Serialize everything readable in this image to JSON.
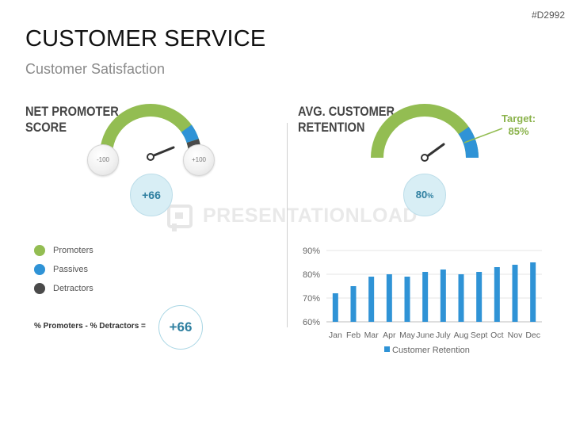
{
  "page": {
    "id_tag": "#D2992",
    "title": "CUSTOMER SERVICE",
    "subtitle": "Customer Satisfaction",
    "watermark": "PRESENTATIONLOAD"
  },
  "nps": {
    "title": "NET PROMOTER\nSCORE",
    "min_label": "-100",
    "max_label": "+100",
    "score": "+66",
    "legend": [
      {
        "label": "Promoters",
        "color": "#93bd52"
      },
      {
        "label": "Passives",
        "color": "#2f93d6"
      },
      {
        "label": "Detractors",
        "color": "#4a4a4a"
      }
    ],
    "formula_label": "% Promoters - % Detractors =",
    "formula_value": "+66"
  },
  "retention": {
    "title": "AVG. CUSTOMER\nRETENTION",
    "score_number": "80",
    "score_unit": "%",
    "target_label": "Target:",
    "target_value": "85%"
  },
  "colors": {
    "green": "#93bd52",
    "blue": "#2f93d6",
    "dark": "#4a4a4a",
    "bar": "#2f93d6",
    "score_text": "#2e7fa0"
  },
  "chart_data": {
    "type": "bar",
    "categories": [
      "Jan",
      "Feb",
      "Mar",
      "Apr",
      "May",
      "June",
      "July",
      "Aug",
      "Sept",
      "Oct",
      "Nov",
      "Dec"
    ],
    "series": [
      {
        "name": "Customer Retention",
        "values": [
          72,
          75,
          79,
          80,
          79,
          81,
          82,
          80,
          81,
          83,
          84,
          85
        ]
      }
    ],
    "ylim": [
      60,
      90
    ],
    "yticks": [
      60,
      70,
      80,
      90
    ],
    "ytick_labels": [
      "60%",
      "70%",
      "80%",
      "90%"
    ],
    "grid": true,
    "legend_position": "bottom"
  }
}
